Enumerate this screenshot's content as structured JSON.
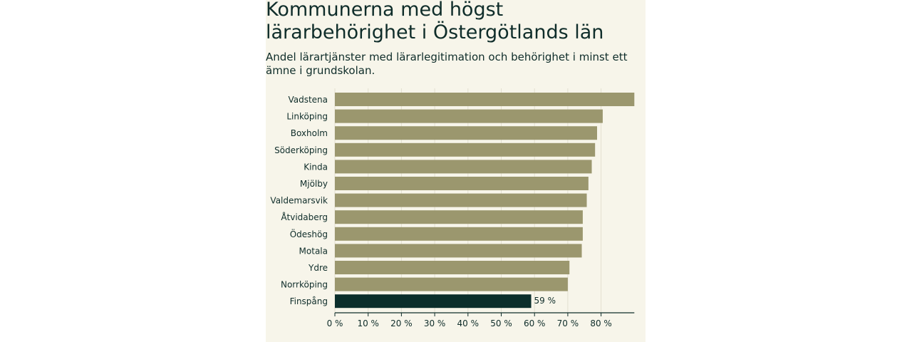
{
  "title": "Kommunerna med högst lärarbehörighet i Östergötlands län",
  "subtitle": "Andel lärartjänster med lärarlegitimation och behörighet i minst ett ämne i grundskolan.",
  "colors": {
    "bar": "#9b976e",
    "highlight": "#0b2e2b",
    "panel": "#f7f5ea",
    "text": "#0f2d2a"
  },
  "chart_data": {
    "type": "bar",
    "orientation": "horizontal",
    "categories": [
      "Vadstena",
      "Linköping",
      "Boxholm",
      "Söderköping",
      "Kinda",
      "Mjölby",
      "Valdemarsvik",
      "Åtvidaberg",
      "Ödeshög",
      "Motala",
      "Ydre",
      "Norrköping",
      "Finspång"
    ],
    "values": [
      90,
      80.5,
      78.8,
      78.2,
      77.2,
      76.2,
      75.7,
      74.5,
      74.5,
      74.2,
      70.5,
      70,
      59
    ],
    "highlight": "Finspång",
    "data_labels": [
      {
        "category": "Finspång",
        "text": "59 %"
      }
    ],
    "xlim": [
      0,
      90
    ],
    "xticks": [
      {
        "value": 0,
        "label": "0 %"
      },
      {
        "value": 10,
        "label": "10 %"
      },
      {
        "value": 20,
        "label": "20 %"
      },
      {
        "value": 30,
        "label": "30 %"
      },
      {
        "value": 40,
        "label": "40 %"
      },
      {
        "value": 50,
        "label": "50 %"
      },
      {
        "value": 60,
        "label": "60 %"
      },
      {
        "value": 70,
        "label": "70 %"
      },
      {
        "value": 80,
        "label": "80 %"
      }
    ],
    "xlabel": "",
    "ylabel": "",
    "grid": true
  }
}
